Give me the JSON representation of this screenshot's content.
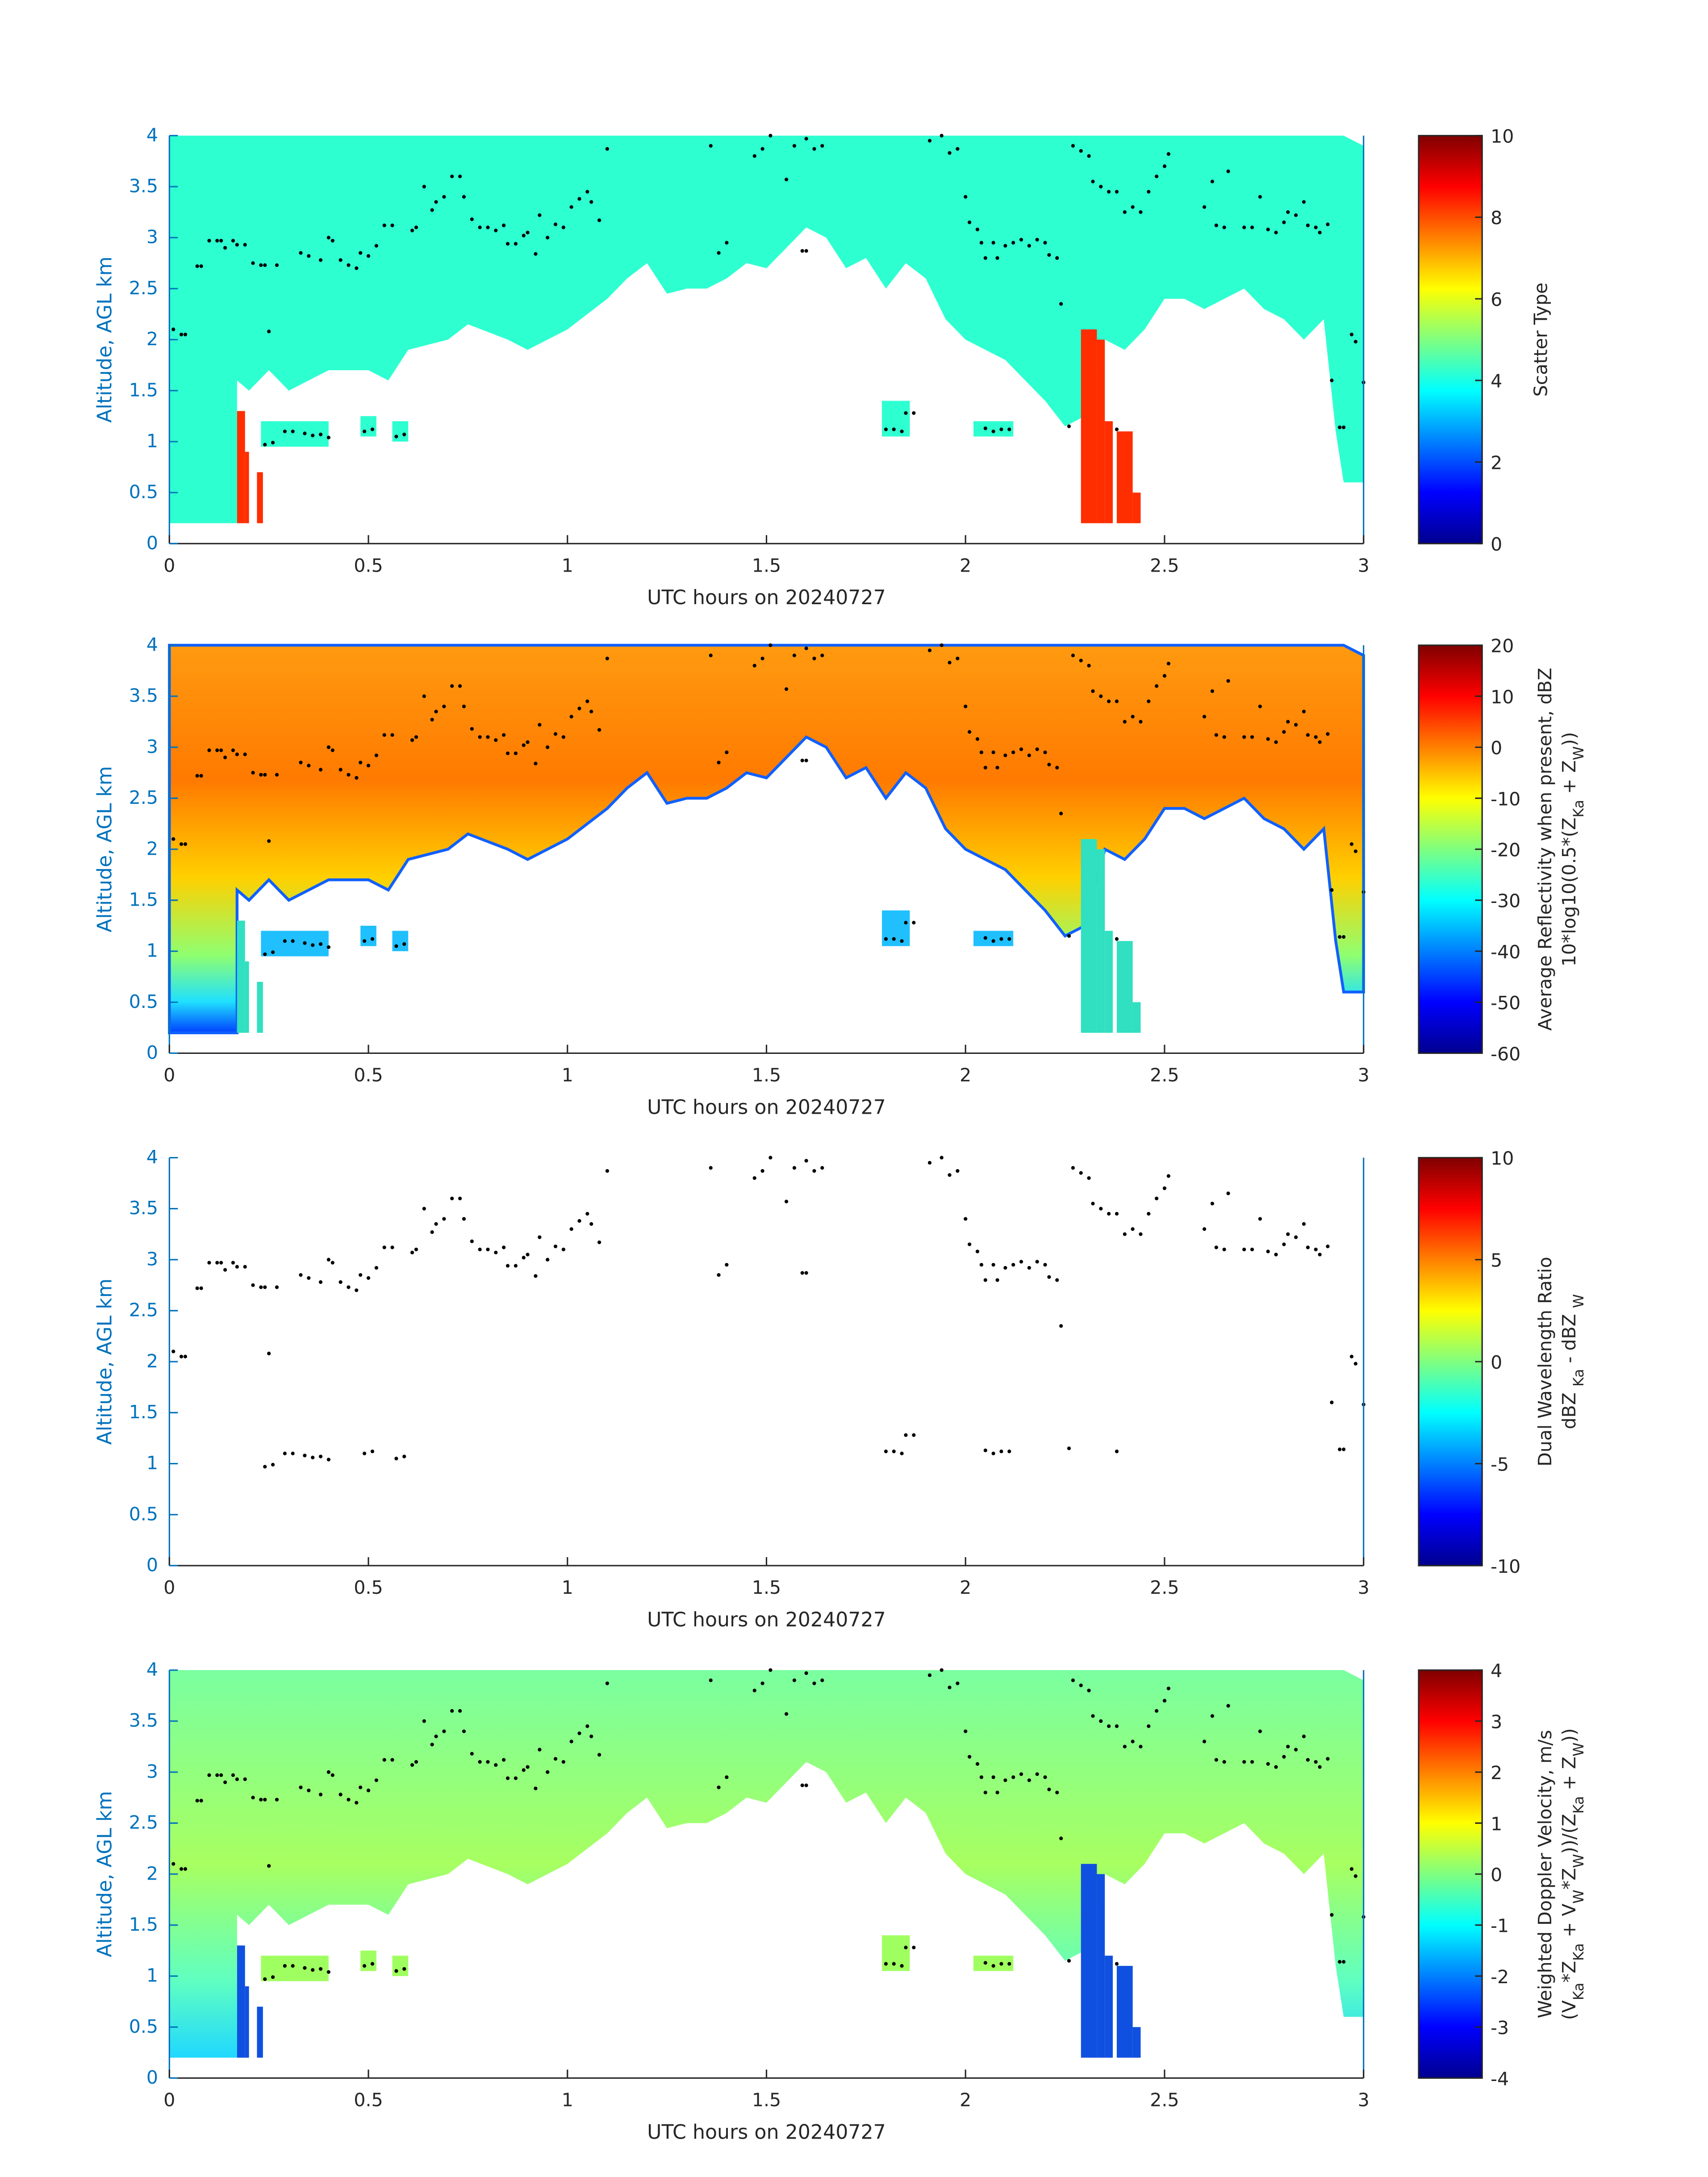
{
  "chart_data": {
    "type": "heatmap",
    "shared": {
      "xlabel": "UTC hours on 20240727",
      "ylabel": "Altitude, AGL km",
      "xlim": [
        0,
        3
      ],
      "ylim": [
        0,
        4
      ],
      "xticks": [
        "0",
        "0.5",
        "1",
        "1.5",
        "2",
        "2.5",
        "3"
      ],
      "yticks": [
        "0",
        "0.5",
        "1",
        "1.5",
        "2",
        "2.5",
        "3",
        "3.5",
        "4"
      ],
      "colormap": "jet"
    },
    "panels": [
      {
        "id": "scatter-type",
        "colorbar": {
          "range": [
            0,
            10
          ],
          "ticks": [
            "0",
            "2",
            "4",
            "6",
            "8",
            "10"
          ],
          "label": [
            [
              {
                "t": "Scatter Type"
              }
            ]
          ]
        },
        "fill_value": 4.2,
        "show_cloud": true
      },
      {
        "id": "reflectivity",
        "colorbar": {
          "range": [
            -60,
            20
          ],
          "ticks": [
            "-60",
            "-50",
            "-40",
            "-30",
            "-20",
            "-10",
            "0",
            "10",
            "20"
          ],
          "label": [
            [
              {
                "t": "Average Reflectivity when present, dBZ"
              }
            ],
            [
              {
                "t": "10*log10(0.5*(Z"
              },
              {
                "sub": "Ka"
              },
              {
                "t": " + Z"
              },
              {
                "sub": "W"
              },
              {
                "t": "))"
              }
            ]
          ]
        },
        "fill_value": 0,
        "show_cloud": true
      },
      {
        "id": "dual-wavelength-ratio",
        "colorbar": {
          "range": [
            -10,
            10
          ],
          "ticks": [
            "-10",
            "-5",
            "0",
            "5",
            "10"
          ],
          "label": [
            [
              {
                "t": "Dual Wavelength Ratio"
              }
            ],
            [
              {
                "t": "dBZ "
              },
              {
                "sub": "Ka"
              },
              {
                "t": " - dBZ "
              },
              {
                "sub": "W"
              }
            ]
          ]
        },
        "show_cloud": false
      },
      {
        "id": "doppler-velocity",
        "colorbar": {
          "range": [
            -4,
            4
          ],
          "ticks": [
            "-4",
            "-3",
            "-2",
            "-1",
            "0",
            "1",
            "2",
            "3",
            "4"
          ],
          "label": [
            [
              {
                "t": "Weighted Doppler Velocity, m/s"
              }
            ],
            [
              {
                "t": "(V"
              },
              {
                "sub": "Ka"
              },
              {
                "t": "*Z"
              },
              {
                "sub": "Ka"
              },
              {
                "t": " + V"
              },
              {
                "sub": "W"
              },
              {
                "t": "*Z"
              },
              {
                "sub": "W"
              },
              {
                "t": "))/(Z"
              },
              {
                "sub": "Ka"
              },
              {
                "t": " + Z"
              },
              {
                "sub": "W"
              },
              {
                "t": "))"
              }
            ]
          ]
        },
        "fill_value": -0.3,
        "show_cloud": true
      }
    ],
    "cloud_base_km": [
      [
        0,
        0.2
      ],
      [
        0.17,
        0.2
      ],
      [
        0.17,
        1.6
      ],
      [
        0.2,
        1.5
      ],
      [
        0.25,
        1.7
      ],
      [
        0.3,
        1.5
      ],
      [
        0.35,
        1.6
      ],
      [
        0.4,
        1.7
      ],
      [
        0.5,
        1.7
      ],
      [
        0.55,
        1.6
      ],
      [
        0.6,
        1.9
      ],
      [
        0.7,
        2.0
      ],
      [
        0.75,
        2.15
      ],
      [
        0.85,
        2.0
      ],
      [
        0.9,
        1.9
      ],
      [
        1.0,
        2.1
      ],
      [
        1.05,
        2.25
      ],
      [
        1.1,
        2.4
      ],
      [
        1.15,
        2.6
      ],
      [
        1.2,
        2.75
      ],
      [
        1.25,
        2.45
      ],
      [
        1.3,
        2.5
      ],
      [
        1.35,
        2.5
      ],
      [
        1.4,
        2.6
      ],
      [
        1.45,
        2.75
      ],
      [
        1.5,
        2.7
      ],
      [
        1.55,
        2.9
      ],
      [
        1.6,
        3.1
      ],
      [
        1.65,
        3.0
      ],
      [
        1.7,
        2.7
      ],
      [
        1.75,
        2.8
      ],
      [
        1.8,
        2.5
      ],
      [
        1.85,
        2.75
      ],
      [
        1.9,
        2.6
      ],
      [
        1.95,
        2.2
      ],
      [
        2.0,
        2.0
      ],
      [
        2.05,
        1.9
      ],
      [
        2.1,
        1.8
      ],
      [
        2.15,
        1.6
      ],
      [
        2.2,
        1.4
      ],
      [
        2.25,
        1.15
      ],
      [
        2.3,
        1.25
      ],
      [
        2.35,
        2.0
      ],
      [
        2.4,
        1.9
      ],
      [
        2.45,
        2.1
      ],
      [
        2.5,
        2.4
      ],
      [
        2.55,
        2.4
      ],
      [
        2.6,
        2.3
      ],
      [
        2.7,
        2.5
      ],
      [
        2.75,
        2.3
      ],
      [
        2.8,
        2.2
      ],
      [
        2.85,
        2.0
      ],
      [
        2.9,
        2.2
      ],
      [
        2.93,
        1.1
      ],
      [
        2.95,
        0.6
      ],
      [
        3.0,
        0.6
      ]
    ],
    "low_patches": [
      [
        0.23,
        0.4,
        0.95,
        1.2
      ],
      [
        0.48,
        0.52,
        1.05,
        1.25
      ],
      [
        0.56,
        0.6,
        1.0,
        1.2
      ],
      [
        1.79,
        1.86,
        1.05,
        1.4
      ],
      [
        2.02,
        2.12,
        1.05,
        1.2
      ]
    ],
    "precip_columns": [
      [
        0.17,
        0.19,
        0.2,
        1.3
      ],
      [
        0.19,
        0.2,
        0.2,
        0.9
      ],
      [
        0.22,
        0.235,
        0.2,
        0.7
      ],
      [
        2.29,
        2.33,
        0.2,
        2.1
      ],
      [
        2.33,
        2.35,
        0.2,
        2.0
      ],
      [
        2.35,
        2.37,
        0.2,
        1.2
      ],
      [
        2.38,
        2.42,
        0.2,
        1.1
      ],
      [
        2.42,
        2.44,
        0.2,
        0.5
      ]
    ],
    "precip_scatter_type": 8.3,
    "markers": [
      [
        0.01,
        2.1
      ],
      [
        0.03,
        2.05
      ],
      [
        0.04,
        2.05
      ],
      [
        0.07,
        2.72
      ],
      [
        0.08,
        2.72
      ],
      [
        0.1,
        2.97
      ],
      [
        0.12,
        2.97
      ],
      [
        0.13,
        2.97
      ],
      [
        0.14,
        2.9
      ],
      [
        0.16,
        2.97
      ],
      [
        0.17,
        2.93
      ],
      [
        0.19,
        2.93
      ],
      [
        0.21,
        2.75
      ],
      [
        0.23,
        2.73
      ],
      [
        0.24,
        2.73
      ],
      [
        0.25,
        2.08
      ],
      [
        0.27,
        2.73
      ],
      [
        0.24,
        0.97
      ],
      [
        0.26,
        0.99
      ],
      [
        0.29,
        1.1
      ],
      [
        0.31,
        1.1
      ],
      [
        0.33,
        2.85
      ],
      [
        0.35,
        2.82
      ],
      [
        0.34,
        1.08
      ],
      [
        0.36,
        1.06
      ],
      [
        0.38,
        1.07
      ],
      [
        0.38,
        2.78
      ],
      [
        0.4,
        3.0
      ],
      [
        0.41,
        2.97
      ],
      [
        0.4,
        1.04
      ],
      [
        0.43,
        2.78
      ],
      [
        0.45,
        2.73
      ],
      [
        0.47,
        2.7
      ],
      [
        0.48,
        2.85
      ],
      [
        0.5,
        2.82
      ],
      [
        0.49,
        1.1
      ],
      [
        0.51,
        1.12
      ],
      [
        0.52,
        2.92
      ],
      [
        0.54,
        3.12
      ],
      [
        0.56,
        3.12
      ],
      [
        0.57,
        1.05
      ],
      [
        0.59,
        1.07
      ],
      [
        0.61,
        3.07
      ],
      [
        0.62,
        3.1
      ],
      [
        0.64,
        3.5
      ],
      [
        0.66,
        3.27
      ],
      [
        0.67,
        3.35
      ],
      [
        0.69,
        3.4
      ],
      [
        0.71,
        3.6
      ],
      [
        0.73,
        3.6
      ],
      [
        0.74,
        3.4
      ],
      [
        0.76,
        3.18
      ],
      [
        0.78,
        3.1
      ],
      [
        0.8,
        3.1
      ],
      [
        0.82,
        3.07
      ],
      [
        0.84,
        3.12
      ],
      [
        0.85,
        2.94
      ],
      [
        0.87,
        2.94
      ],
      [
        0.89,
        3.02
      ],
      [
        0.9,
        3.05
      ],
      [
        0.92,
        2.84
      ],
      [
        0.93,
        3.22
      ],
      [
        0.95,
        3.0
      ],
      [
        0.97,
        3.13
      ],
      [
        0.99,
        3.1
      ],
      [
        1.01,
        3.3
      ],
      [
        1.03,
        3.38
      ],
      [
        1.05,
        3.45
      ],
      [
        1.06,
        3.35
      ],
      [
        1.08,
        3.17
      ],
      [
        1.1,
        3.87
      ],
      [
        1.36,
        3.9
      ],
      [
        1.38,
        2.85
      ],
      [
        1.4,
        2.95
      ],
      [
        1.47,
        3.8
      ],
      [
        1.49,
        3.87
      ],
      [
        1.51,
        4.0
      ],
      [
        1.55,
        3.57
      ],
      [
        1.57,
        3.9
      ],
      [
        1.59,
        2.87
      ],
      [
        1.6,
        2.87
      ],
      [
        1.6,
        3.97
      ],
      [
        1.62,
        3.87
      ],
      [
        1.64,
        3.9
      ],
      [
        1.8,
        1.12
      ],
      [
        1.82,
        1.12
      ],
      [
        1.84,
        1.1
      ],
      [
        1.85,
        1.28
      ],
      [
        1.87,
        1.28
      ],
      [
        1.91,
        3.95
      ],
      [
        1.94,
        4.0
      ],
      [
        1.96,
        3.83
      ],
      [
        1.98,
        3.87
      ],
      [
        2.0,
        3.4
      ],
      [
        2.01,
        3.15
      ],
      [
        2.03,
        3.08
      ],
      [
        2.04,
        2.95
      ],
      [
        2.05,
        2.8
      ],
      [
        2.07,
        2.95
      ],
      [
        2.08,
        2.8
      ],
      [
        2.1,
        2.92
      ],
      [
        2.12,
        2.95
      ],
      [
        2.14,
        2.98
      ],
      [
        2.16,
        2.92
      ],
      [
        2.18,
        2.98
      ],
      [
        2.2,
        2.95
      ],
      [
        2.21,
        2.83
      ],
      [
        2.23,
        2.8
      ],
      [
        2.24,
        2.35
      ],
      [
        2.05,
        1.13
      ],
      [
        2.07,
        1.1
      ],
      [
        2.09,
        1.12
      ],
      [
        2.11,
        1.12
      ],
      [
        2.26,
        1.15
      ],
      [
        2.27,
        3.9
      ],
      [
        2.29,
        3.85
      ],
      [
        2.31,
        3.8
      ],
      [
        2.32,
        3.55
      ],
      [
        2.34,
        3.5
      ],
      [
        2.36,
        3.45
      ],
      [
        2.38,
        3.45
      ],
      [
        2.38,
        1.12
      ],
      [
        2.4,
        3.25
      ],
      [
        2.42,
        3.3
      ],
      [
        2.44,
        3.25
      ],
      [
        2.46,
        3.45
      ],
      [
        2.48,
        3.6
      ],
      [
        2.5,
        3.7
      ],
      [
        2.51,
        3.82
      ],
      [
        2.6,
        3.3
      ],
      [
        2.62,
        3.55
      ],
      [
        2.63,
        3.12
      ],
      [
        2.65,
        3.1
      ],
      [
        2.66,
        3.65
      ],
      [
        2.7,
        3.1
      ],
      [
        2.72,
        3.1
      ],
      [
        2.74,
        3.4
      ],
      [
        2.76,
        3.08
      ],
      [
        2.78,
        3.05
      ],
      [
        2.8,
        3.15
      ],
      [
        2.81,
        3.25
      ],
      [
        2.83,
        3.22
      ],
      [
        2.85,
        3.35
      ],
      [
        2.86,
        3.12
      ],
      [
        2.88,
        3.1
      ],
      [
        2.89,
        3.05
      ],
      [
        2.91,
        3.13
      ],
      [
        2.92,
        1.6
      ],
      [
        2.94,
        1.14
      ],
      [
        2.95,
        1.14
      ],
      [
        2.97,
        2.05
      ],
      [
        2.98,
        1.98
      ],
      [
        3.0,
        1.58
      ]
    ]
  }
}
